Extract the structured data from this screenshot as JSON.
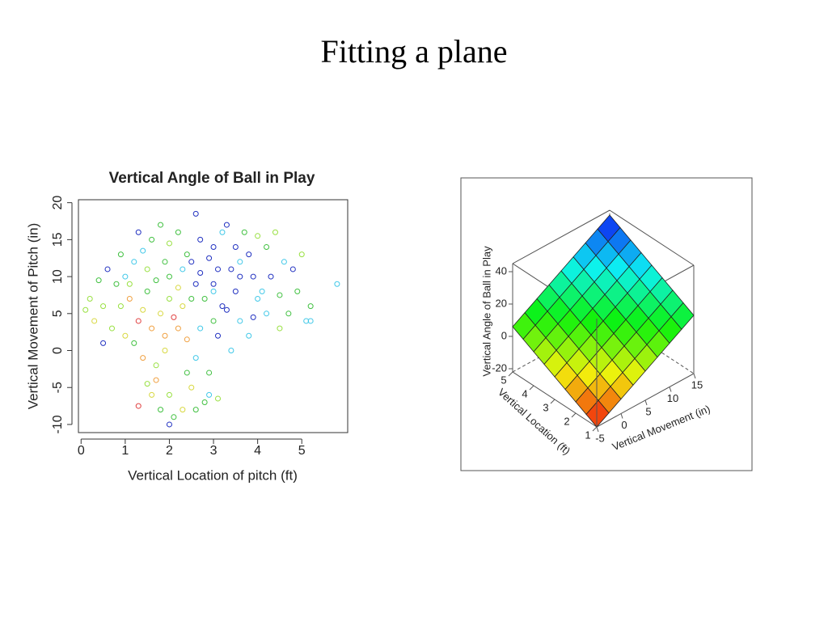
{
  "title": "Fitting a plane",
  "chart_data": [
    {
      "type": "scatter",
      "title": "Vertical Angle of Ball in Play",
      "x_label": "Vertical Location of pitch (ft)",
      "y_label": "Vertical Movement of Pitch (in)",
      "xlim": [
        -0.06,
        6.04
      ],
      "ylim": [
        -11.1,
        20.4
      ],
      "xticks": [
        0,
        1,
        2,
        3,
        4,
        5
      ],
      "yticks": [
        -10,
        -5,
        0,
        5,
        10,
        15,
        20
      ],
      "palette": [
        "#2030c0",
        "#40c8e8",
        "#40c040",
        "#98e040",
        "#d8d840",
        "#f0a040",
        "#e04040"
      ],
      "x": [
        2.0,
        2.5,
        3.0,
        1.5,
        1.8,
        2.2,
        2.7,
        3.4,
        3.8,
        1.2,
        0.8,
        0.5,
        0.3,
        1.0,
        1.4,
        1.7,
        2.0,
        2.1,
        1.8,
        2.4,
        2.9,
        2.6,
        3.1,
        3.6,
        4.0,
        4.3,
        4.6,
        4.9,
        5.2,
        5.8,
        5.1,
        4.5,
        3.3,
        2.6,
        2.2,
        1.6,
        1.3,
        0.9,
        0.6,
        0.2,
        0.4,
        1.1,
        1.3,
        1.9,
        2.3,
        2.8,
        3.2,
        3.5,
        3.9,
        4.2,
        4.4,
        3.7,
        3.0,
        2.4,
        1.9,
        1.5,
        1.0,
        2.0,
        2.6,
        3.1,
        3.6,
        4.1,
        4.7,
        3.8,
        3.4,
        2.9,
        2.5,
        1.6,
        1.3,
        2.0,
        2.3,
        2.8,
        1.7,
        1.2,
        0.7,
        0.5,
        2.1,
        2.4,
        1.6,
        3.0,
        3.3,
        2.7,
        1.4,
        1.1,
        2.9,
        3.5,
        4.0,
        3.2,
        2.0,
        1.8,
        2.7,
        2.3,
        1.7,
        1.4,
        4.8,
        5.0,
        4.5,
        4.2,
        3.9,
        0.9,
        2.2,
        2.5,
        3.0,
        3.6,
        1.9,
        2.6,
        3.1,
        1.5,
        0.1,
        5.2
      ],
      "values": [
        10,
        12,
        9,
        8,
        5,
        3,
        15,
        11,
        13,
        12,
        9,
        6,
        4,
        2,
        -1,
        -4,
        -6,
        -9,
        -8,
        -3,
        -6,
        -1,
        2,
        4,
        7,
        10,
        12,
        8,
        6,
        9,
        4,
        3,
        17,
        18.5,
        16,
        15,
        16,
        13,
        11,
        7,
        9.5,
        7,
        4,
        2,
        6,
        7,
        6,
        8,
        10,
        14,
        16,
        16,
        14,
        13,
        12,
        11,
        10,
        7,
        9,
        11,
        12,
        8,
        5,
        2,
        0,
        -3,
        -5,
        -6,
        -7.5,
        -10,
        -8,
        -7,
        -2,
        1,
        3,
        1,
        4.5,
        1.5,
        3,
        4,
        5.5,
        3,
        5.5,
        9,
        12.5,
        14,
        15.5,
        16,
        14.5,
        17,
        10.5,
        11,
        9.5,
        13.5,
        11,
        13,
        7.5,
        5,
        4.5,
        6,
        8.5,
        7,
        8,
        10,
        0,
        -8,
        -6.5,
        -4.5,
        5.5,
        4
      ],
      "color_index": [
        2,
        0,
        0,
        2,
        4,
        5,
        0,
        0,
        0,
        1,
        2,
        3,
        4,
        4,
        5,
        5,
        3,
        2,
        2,
        2,
        1,
        1,
        0,
        1,
        1,
        0,
        1,
        2,
        2,
        1,
        1,
        3,
        0,
        0,
        2,
        2,
        0,
        2,
        0,
        3,
        2,
        5,
        6,
        5,
        4,
        2,
        0,
        0,
        0,
        2,
        3,
        2,
        0,
        2,
        2,
        3,
        1,
        3,
        0,
        0,
        1,
        1,
        2,
        1,
        1,
        2,
        4,
        4,
        6,
        0,
        4,
        2,
        3,
        2,
        3,
        0,
        6,
        5,
        5,
        2,
        0,
        1,
        4,
        3,
        0,
        0,
        3,
        1,
        3,
        2,
        0,
        1,
        2,
        1,
        0,
        3,
        2,
        1,
        0,
        3,
        4,
        2,
        1,
        0,
        4,
        2,
        3,
        3,
        3,
        1
      ]
    },
    {
      "type": "surface",
      "x_label": "Vertical Location (ft)",
      "y_label": "Vertical Movement (in)",
      "z_label": "Vertical Angle of Ball in Play",
      "xlim": [
        1,
        5
      ],
      "ylim": [
        -5,
        15
      ],
      "zlim": [
        -22,
        45
      ],
      "xticks": [
        1,
        2,
        3,
        4,
        5
      ],
      "yticks": [
        -5,
        0,
        5,
        10,
        15
      ],
      "zticks": [
        -20,
        0,
        20,
        40
      ],
      "x": [
        1,
        1.5,
        2,
        2.5,
        3,
        3.5,
        4,
        4.5,
        5
      ],
      "y": [
        -5,
        -2.5,
        0,
        2.5,
        5,
        7.5,
        10,
        12.5,
        15
      ],
      "z": [
        [
          -22,
          -17.5,
          -13,
          -8.5,
          -4,
          0.5,
          5,
          9.5,
          14
        ],
        [
          -18.5,
          -14,
          -9.5,
          -5,
          -0.5,
          4,
          8.5,
          13,
          17.5
        ],
        [
          -15,
          -10.5,
          -6,
          -1.5,
          3,
          7.5,
          12,
          16.5,
          21
        ],
        [
          -11.5,
          -7,
          -2.5,
          2,
          6.5,
          11,
          15.5,
          20,
          24.5
        ],
        [
          -8,
          -3.5,
          1,
          5.5,
          10,
          14.5,
          19,
          23.5,
          28
        ],
        [
          -4.5,
          0,
          4.5,
          9,
          13.5,
          18,
          22.5,
          27,
          31.5
        ],
        [
          -1,
          3.5,
          8,
          12.5,
          17,
          21.5,
          26,
          30.5,
          35
        ],
        [
          2.5,
          7,
          11.5,
          16,
          20.5,
          25,
          29.5,
          34,
          38.5
        ],
        [
          6,
          10.5,
          15,
          19.5,
          24,
          28.5,
          33,
          37.5,
          42
        ]
      ]
    }
  ]
}
